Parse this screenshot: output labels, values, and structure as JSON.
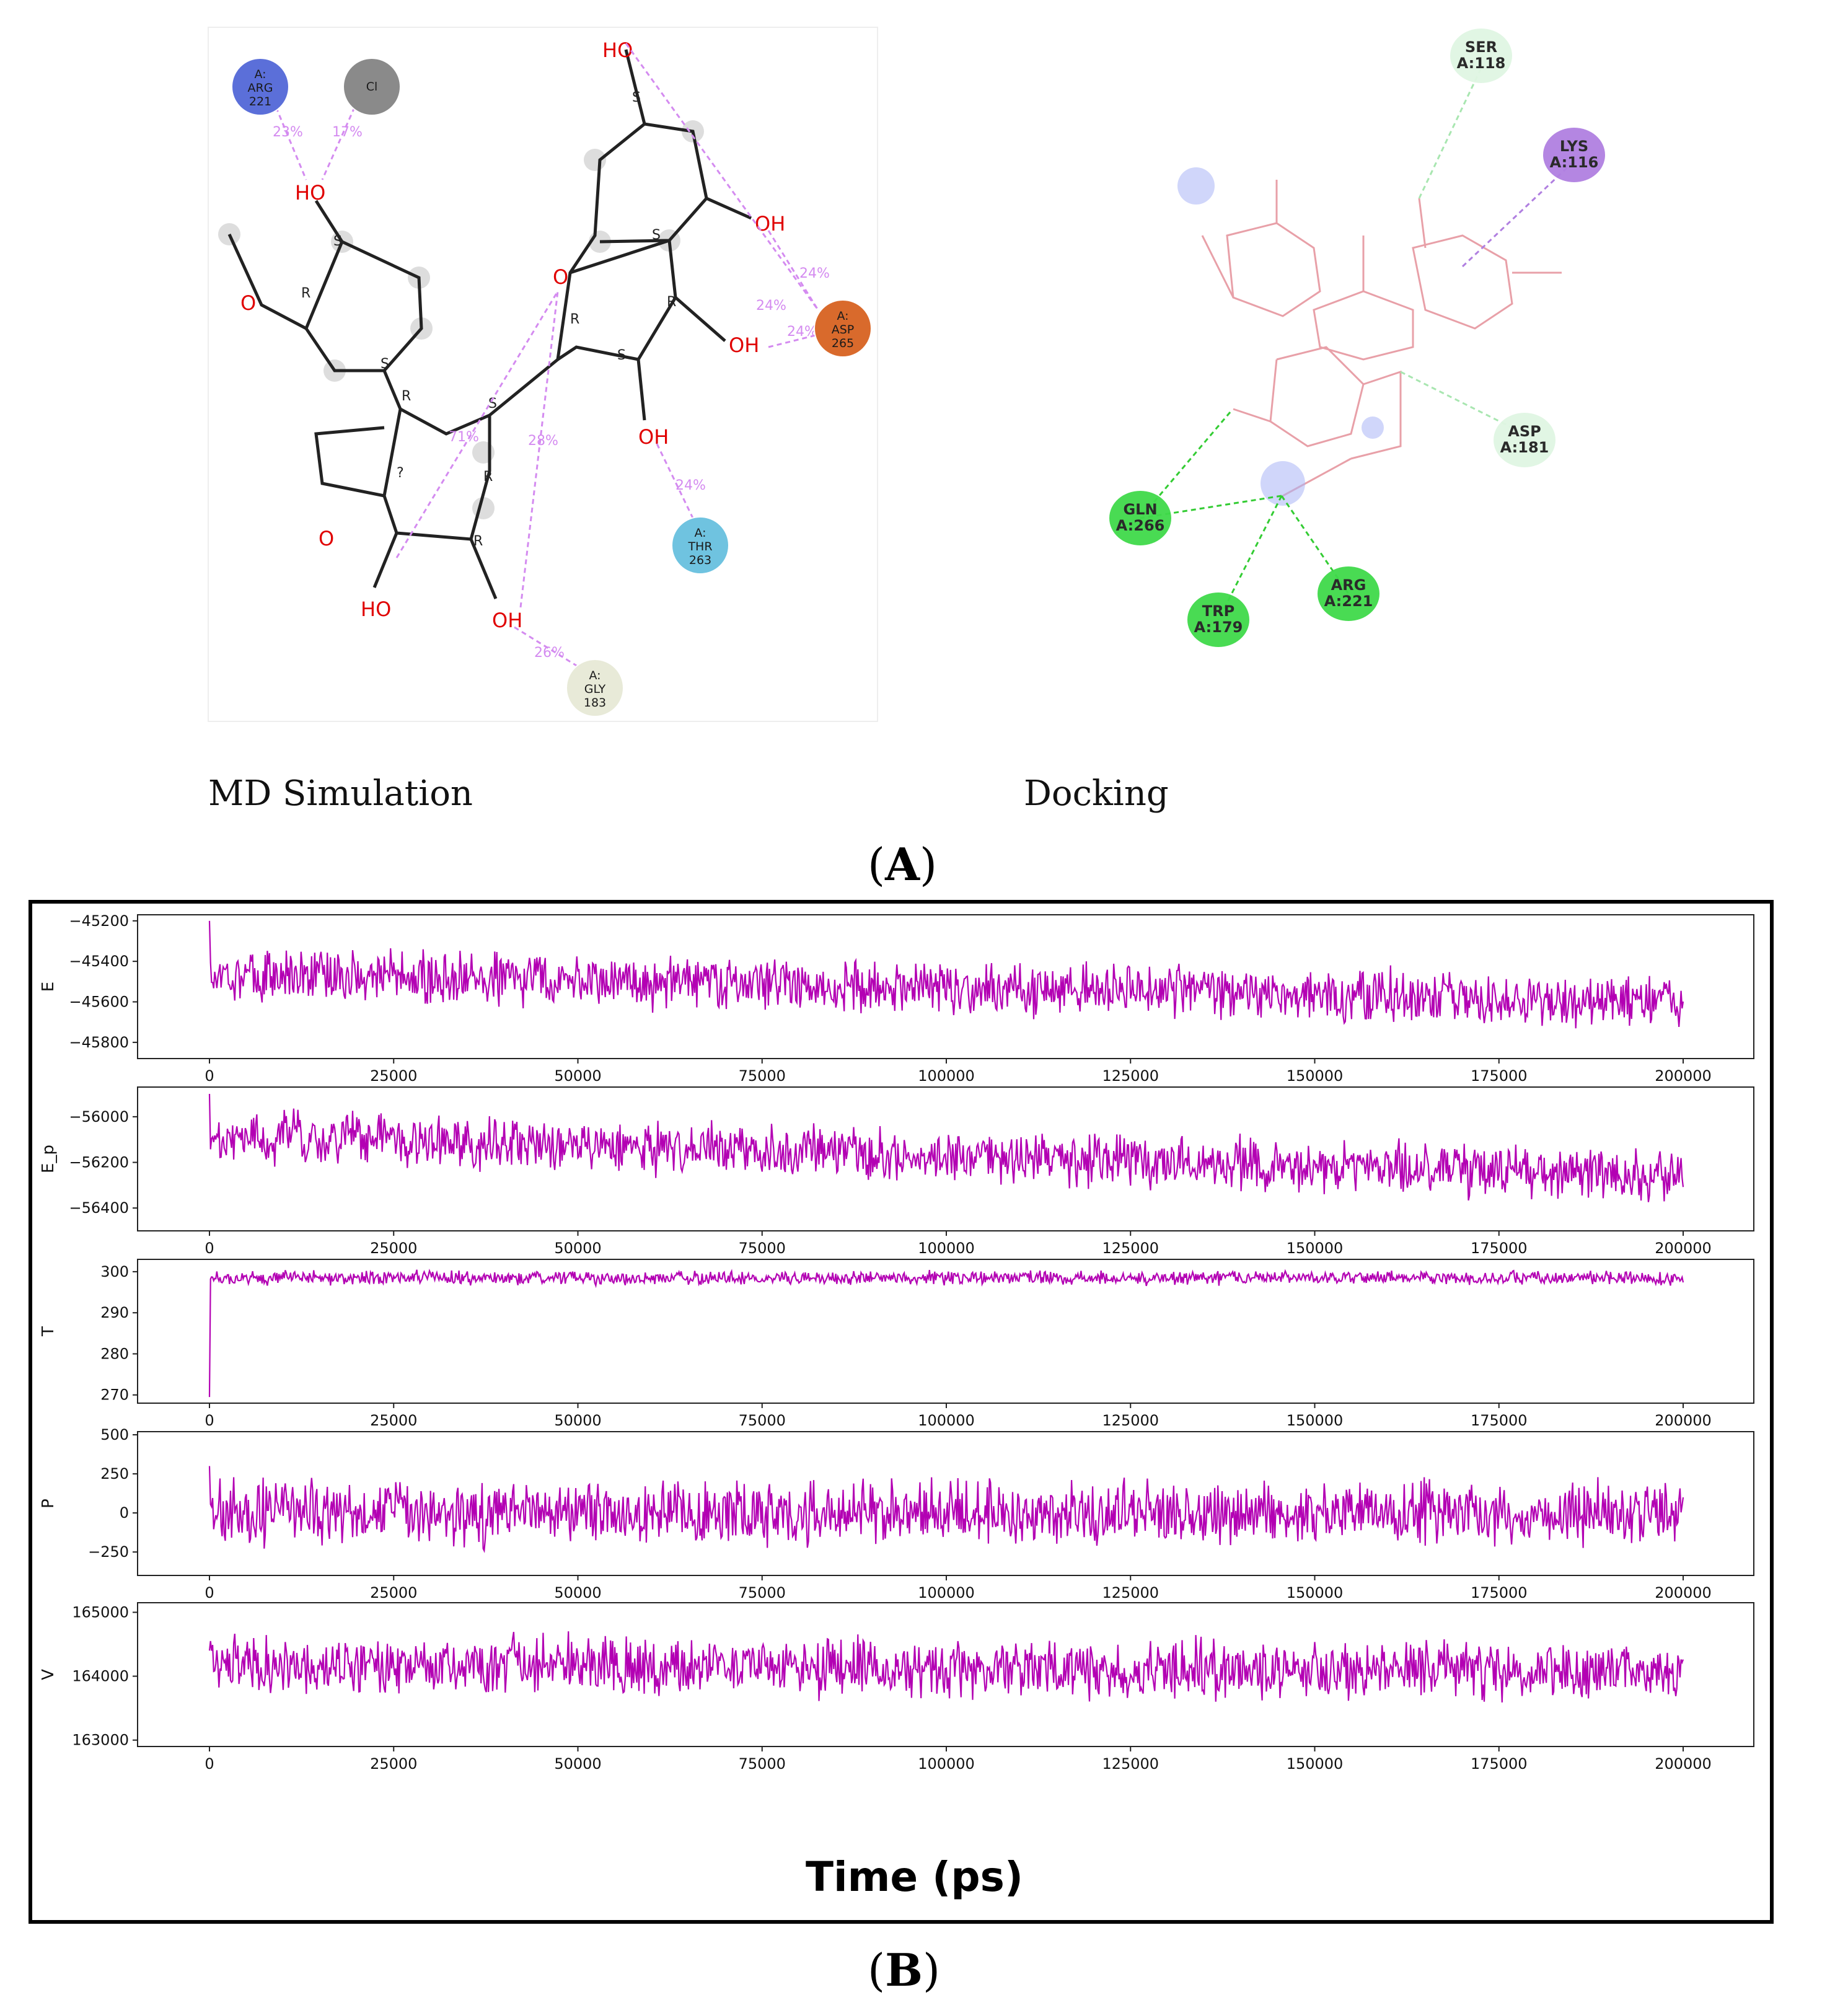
{
  "panel_a": {
    "label": "A",
    "md_caption": "MD Simulation",
    "docking_caption": "Docking",
    "md_interactions": [
      {
        "residue": "A:\nARG\n221",
        "percent": "23%",
        "color": "#5b6fd9"
      },
      {
        "residue": "Cl",
        "percent": "17%",
        "color": "#8a8a8a"
      },
      {
        "residue": "A:\nASP\n265",
        "percent": "24%",
        "color": "#d96a2c"
      },
      {
        "residue": "A:\nTHR\n263",
        "percent": "24%",
        "color": "#6fc3e0"
      },
      {
        "residue": "A:\nGLY\n183",
        "percent": "26%",
        "color": "#e8ead8"
      }
    ],
    "md_other_percents": [
      "71%",
      "28%",
      "24%"
    ],
    "docking_residues": [
      {
        "name": "SER\nA:118",
        "color": "#dff5e3"
      },
      {
        "name": "LYS\nA:116",
        "color": "#b07fe0"
      },
      {
        "name": "ASP\nA:181",
        "color": "#dff5e3"
      },
      {
        "name": "GLN\nA:266",
        "color": "#3fd94a"
      },
      {
        "name": "TRP\nA:179",
        "color": "#3fd94a"
      },
      {
        "name": "ARG\nA:221",
        "color": "#3fd94a"
      }
    ]
  },
  "panel_b": {
    "label": "B",
    "xlabel": "Time (ps)"
  },
  "chart_data": [
    {
      "type": "line",
      "ylabel": "E",
      "color": "#b300b3",
      "x_range": [
        0,
        200000
      ],
      "xticks": [
        0,
        25000,
        50000,
        75000,
        100000,
        125000,
        150000,
        175000,
        200000
      ],
      "yticks": [
        -45200,
        -45400,
        -45600,
        -45800
      ],
      "ylim": [
        -45880,
        -45170
      ],
      "series": [
        {
          "mean_start": -45460,
          "mean_end": -45600,
          "amplitude": 110,
          "start": -45200
        }
      ]
    },
    {
      "type": "line",
      "ylabel": "E_p",
      "color": "#b300b3",
      "x_range": [
        0,
        200000
      ],
      "xticks": [
        0,
        25000,
        50000,
        75000,
        100000,
        125000,
        150000,
        175000,
        200000
      ],
      "yticks": [
        -56000,
        -56200,
        -56400
      ],
      "ylim": [
        -56500,
        -55870
      ],
      "series": [
        {
          "mean_start": -56080,
          "mean_end": -56260,
          "amplitude": 95,
          "start": -55900
        }
      ]
    },
    {
      "type": "line",
      "ylabel": "T",
      "color": "#b300b3",
      "x_range": [
        0,
        200000
      ],
      "xticks": [
        0,
        25000,
        50000,
        75000,
        100000,
        125000,
        150000,
        175000,
        200000
      ],
      "yticks": [
        300,
        290,
        280,
        270
      ],
      "ylim": [
        268,
        303
      ],
      "series": [
        {
          "mean_start": 298.5,
          "mean_end": 298.5,
          "amplitude": 1.4,
          "start": 269.5
        }
      ]
    },
    {
      "type": "line",
      "ylabel": "P",
      "color": "#b300b3",
      "x_range": [
        0,
        200000
      ],
      "xticks": [
        0,
        25000,
        50000,
        75000,
        100000,
        125000,
        150000,
        175000,
        200000
      ],
      "yticks": [
        500,
        250,
        0,
        -250
      ],
      "ylim": [
        -400,
        520
      ],
      "series": [
        {
          "mean_start": 0,
          "mean_end": 0,
          "amplitude": 170,
          "start": 300
        }
      ]
    },
    {
      "type": "line",
      "ylabel": "V",
      "color": "#b300b3",
      "x_range": [
        0,
        200000
      ],
      "xticks": [
        0,
        25000,
        50000,
        75000,
        100000,
        125000,
        150000,
        175000,
        200000
      ],
      "yticks": [
        165000,
        164000,
        163000
      ],
      "ylim": [
        162900,
        165150
      ],
      "series": [
        {
          "mean_start": 164200,
          "mean_end": 164050,
          "amplitude": 380,
          "start": 164400
        }
      ]
    }
  ]
}
